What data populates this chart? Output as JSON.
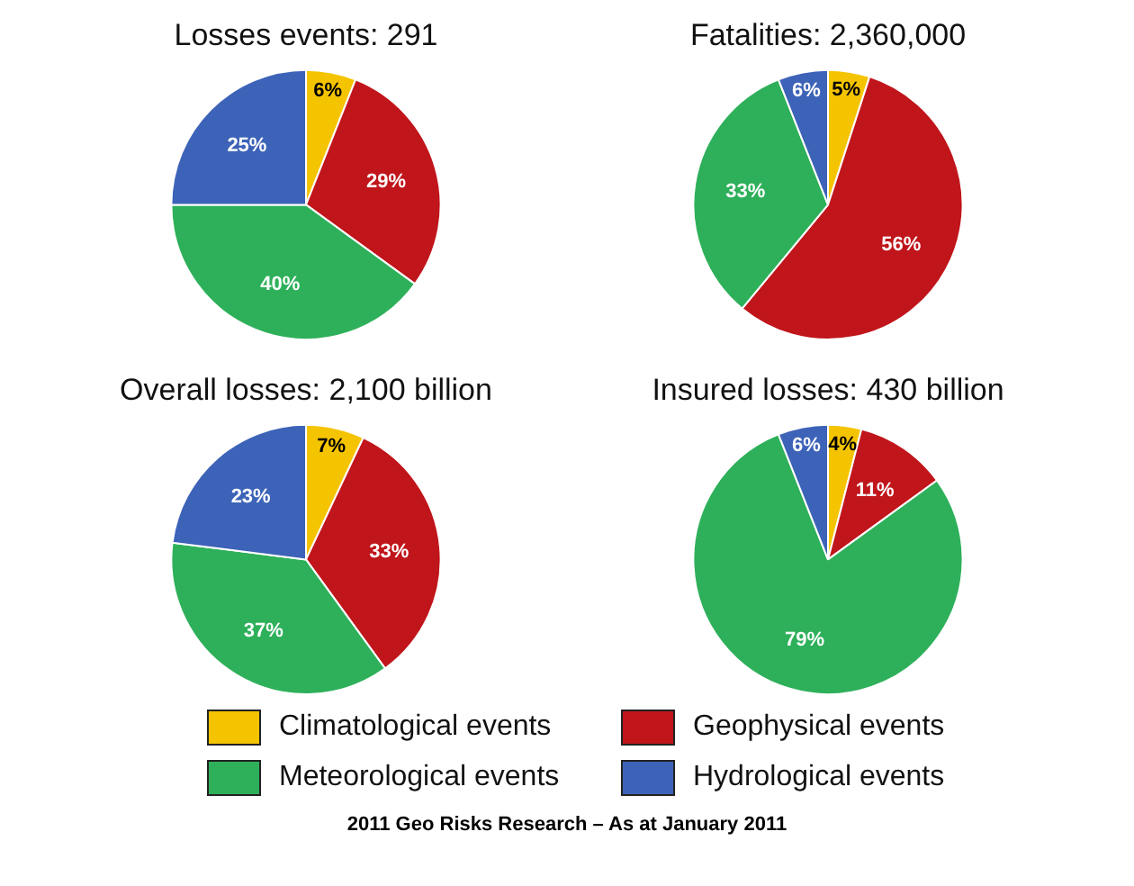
{
  "chart_data": [
    {
      "type": "pie",
      "title": "Losses events: 291",
      "categories": [
        "Climatological events",
        "Geophysical events",
        "Meteorological events",
        "Hydrological events"
      ],
      "values": [
        6,
        29,
        40,
        25
      ],
      "value_labels": [
        "6%",
        "29%",
        "40%",
        "25%"
      ],
      "colors": [
        "#f5c400",
        "#c0151b",
        "#2eb05a",
        "#3d63b8"
      ],
      "legend": "bottom"
    },
    {
      "type": "pie",
      "title": "Fatalities: 2,360,000",
      "categories": [
        null,
        null,
        null,
        null
      ],
      "values": [
        5,
        56,
        33,
        6
      ],
      "value_labels": [
        "5%",
        "56%",
        "33%",
        "6%"
      ],
      "colors": [
        "#f5c400",
        "#c0151b",
        "#2eb05a",
        "#3d63b8"
      ]
    },
    {
      "type": "pie",
      "title": "Overall losses: 2,100 billion",
      "categories": [
        null,
        null,
        null,
        null
      ],
      "values": [
        7,
        33,
        37,
        23
      ],
      "value_labels": [
        "7%",
        "33%",
        "37%",
        "23%"
      ],
      "colors": [
        "#f5c400",
        "#c0151b",
        "#2eb05a",
        "#3d63b8"
      ]
    },
    {
      "type": "pie",
      "title": "Insured losses: 430 billion",
      "categories": [
        null,
        null,
        null,
        null
      ],
      "values": [
        4,
        11,
        79,
        6
      ],
      "value_labels": [
        "4%",
        "11%",
        "79%",
        "6%"
      ],
      "colors": [
        "#f5c400",
        "#c0151b",
        "#2eb05a",
        "#3d63b8"
      ],
      "annotations": [
        "2011 Geo Risks Research – As at January 2011"
      ]
    }
  ]
}
